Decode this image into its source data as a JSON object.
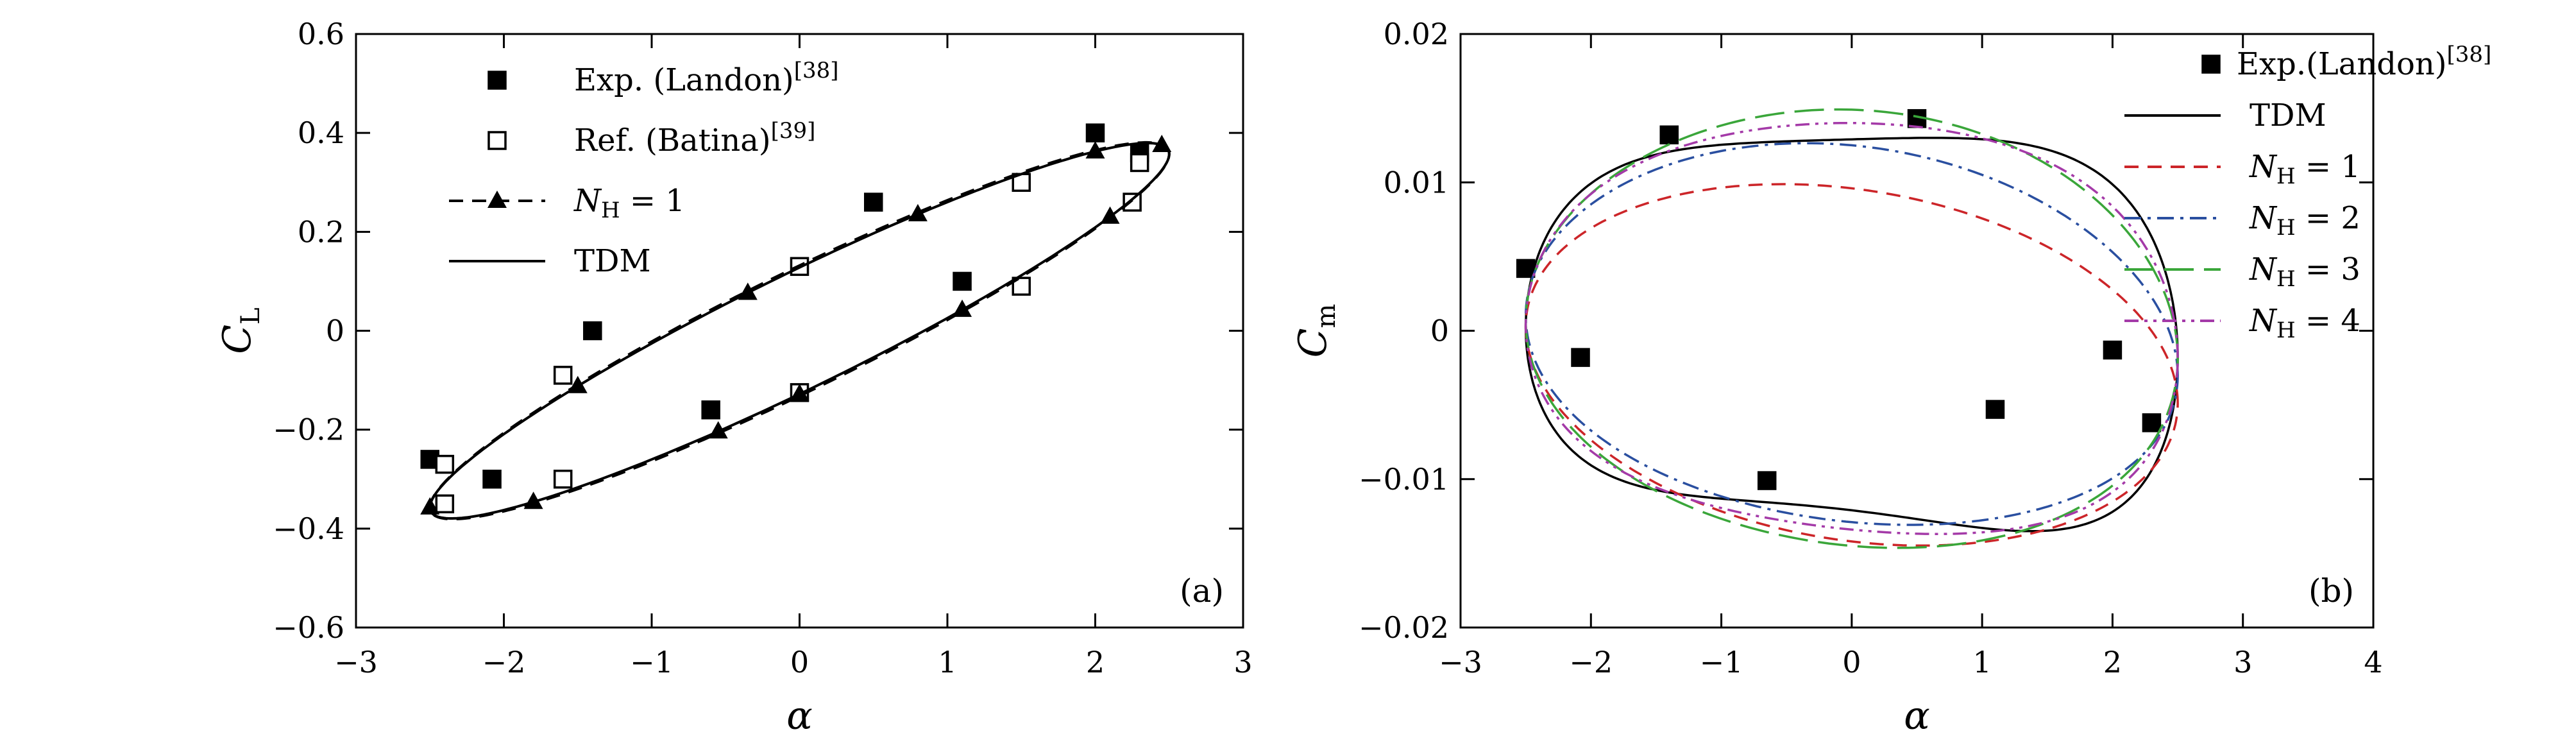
{
  "chart_data": [
    {
      "type": "line",
      "panel_label": "(a)",
      "xlabel": "α",
      "ylabel": "C",
      "ylabel_sub": "L",
      "xlim": [
        -3,
        3
      ],
      "ylim": [
        -0.6,
        0.6
      ],
      "xticks": [
        -3,
        -2,
        -1,
        0,
        1,
        2,
        3
      ],
      "yticks": [
        -0.6,
        -0.4,
        -0.2,
        0,
        0.2,
        0.4,
        0.6
      ],
      "legend_position": "top-left",
      "series": [
        {
          "name": "Exp. (Landon)",
          "name_sup": "[38]",
          "style": "filled-square",
          "points": [
            [
              -2.5,
              -0.26
            ],
            [
              -2.08,
              -0.3
            ],
            [
              -1.4,
              0.0
            ],
            [
              -0.6,
              -0.16
            ],
            [
              0.5,
              0.26
            ],
            [
              1.1,
              0.1
            ],
            [
              2.0,
              0.4
            ],
            [
              2.3,
              0.36
            ]
          ]
        },
        {
          "name": "Ref. (Batina)",
          "name_sup": "[39]",
          "style": "open-square",
          "points": [
            [
              -2.4,
              -0.27
            ],
            [
              -2.4,
              -0.35
            ],
            [
              -1.6,
              -0.09
            ],
            [
              -1.6,
              -0.3
            ],
            [
              0.0,
              0.13
            ],
            [
              0.0,
              -0.125
            ],
            [
              1.5,
              0.3
            ],
            [
              1.5,
              0.09
            ],
            [
              2.25,
              0.26
            ],
            [
              2.3,
              0.34
            ]
          ]
        },
        {
          "name": "N",
          "name_sub": "H",
          "name_suffix": " = 1",
          "style": "dashed-triangle",
          "color": "#000000",
          "loop": {
            "amp": 2.5,
            "a": 0.047,
            "b": 0.3573,
            "ph": 2.375,
            "c": 0.0
          },
          "markers_at_alpha": [
            -2.5,
            -1.5,
            -0.35,
            0.8,
            2.0,
            2.45,
            2.1,
            1.1,
            0.0,
            -0.55,
            -1.8
          ]
        },
        {
          "name": "TDM",
          "style": "solid",
          "color": "#000000",
          "loop": {
            "amp": 2.5,
            "a": 0.047,
            "b": 0.3573,
            "ph": 2.375,
            "c": 0.0
          }
        }
      ]
    },
    {
      "type": "line",
      "panel_label": "(b)",
      "xlabel": "α",
      "ylabel": "C",
      "ylabel_sub": "m",
      "xlim": [
        -3,
        4
      ],
      "ylim": [
        -0.02,
        0.02
      ],
      "xticks": [
        -3,
        -2,
        -1,
        0,
        1,
        2,
        3,
        4
      ],
      "yticks": [
        -0.02,
        -0.01,
        0,
        0.01,
        0.02
      ],
      "legend_position": "top-right",
      "series": [
        {
          "name": "Exp.(Landon)",
          "name_sup": "[38]",
          "style": "filled-square",
          "points": [
            [
              -2.5,
              0.0042
            ],
            [
              -2.08,
              -0.0018
            ],
            [
              -1.4,
              0.0132
            ],
            [
              -0.65,
              -0.0101
            ],
            [
              0.5,
              0.0143
            ],
            [
              1.1,
              -0.0053
            ],
            [
              2.0,
              -0.0013
            ],
            [
              2.3,
              -0.0062
            ]
          ]
        },
        {
          "name": "TDM",
          "style": "solid",
          "color": "#000000",
          "loop": {
            "amp": 2.5,
            "c": -0.0002,
            "harm": [
              [
                0.0024,
                1.25,
                0.0143,
                0.64
              ],
              [
                -0.0006,
                0.0,
                0.0008,
                0.0
              ],
              [
                0.0,
                0.0,
                0.0018,
                0.0
              ]
            ]
          }
        },
        {
          "name": "N",
          "name_sub": "H",
          "name_suffix": " = 1",
          "style": "dashed",
          "color": "#cc2529",
          "loop": {
            "amp": 2.5,
            "c": -0.0023,
            "harm": [
              [
                0.0019,
                0.74,
                0.0119,
                0.6
              ]
            ]
          }
        },
        {
          "name": "N",
          "name_sub": "H",
          "name_suffix": " = 2",
          "style": "dashdot",
          "color": "#2a4fa0",
          "loop": {
            "amp": 2.5,
            "c": -0.0006,
            "harm": [
              [
                0.0017,
                1.17,
                0.0127,
                0.1
              ],
              [
                -0.0004,
                0.0,
                0.0,
                0.0
              ]
            ]
          }
        },
        {
          "name": "N",
          "name_sub": "H",
          "name_suffix": " = 3",
          "style": "longdash",
          "color": "#3aa63a",
          "loop": {
            "amp": 2.5,
            "c": -0.0002,
            "harm": [
              [
                0.0022,
                1.24,
                0.0147,
                0.75
              ],
              [
                -0.0004,
                0.0,
                0.0003,
                0.0
              ]
            ]
          }
        },
        {
          "name": "N",
          "name_sub": "H",
          "name_suffix": " = 4",
          "style": "dashdotdot",
          "color": "#a43aa8",
          "loop": {
            "amp": 2.5,
            "c": -0.0002,
            "harm": [
              [
                0.0023,
                1.25,
                0.0143,
                0.68
              ],
              [
                -0.0005,
                0.0,
                0.0005,
                0.0
              ],
              [
                0.0,
                0.0,
                0.0006,
                0.0
              ]
            ]
          }
        }
      ]
    }
  ]
}
